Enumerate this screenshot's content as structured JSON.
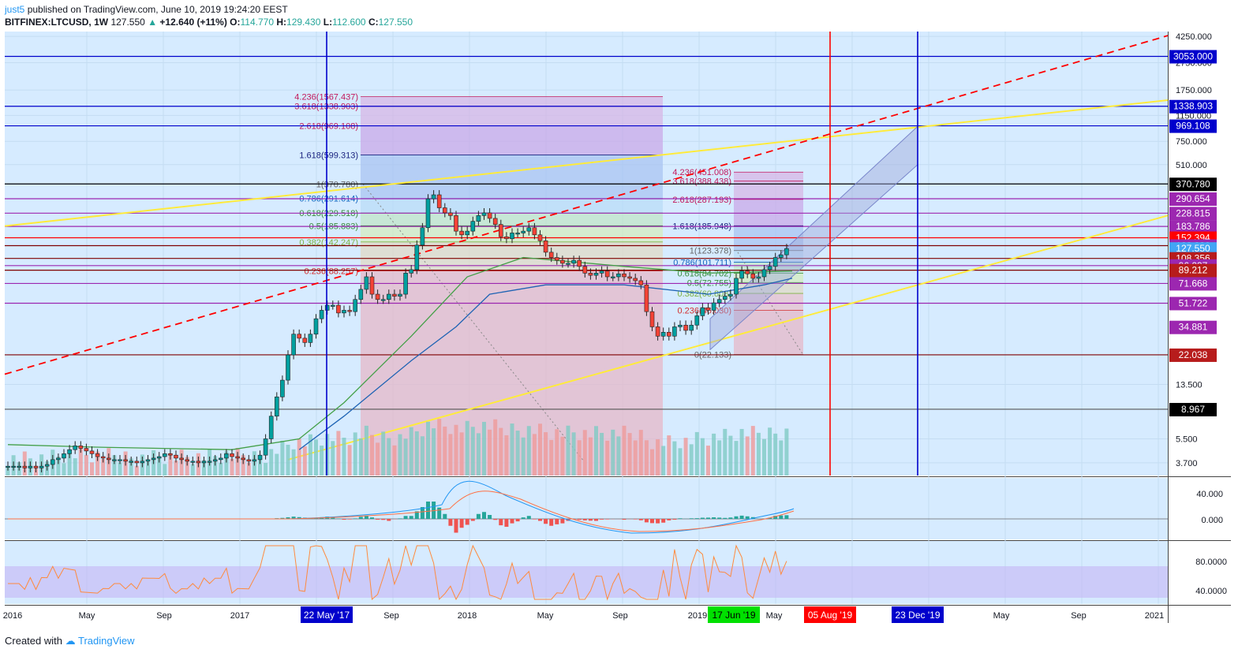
{
  "header": {
    "user": "just5",
    "published": "published on TradingView.com, June 10, 2019 19:24:20 EEST",
    "symbol": "BITFINEX:LTCUSD, 1W",
    "price": "127.550",
    "change": "+12.640 (+11%)",
    "o_label": "O:",
    "o_value": "114.770",
    "h_label": "H:",
    "h_value": "129.430",
    "l_label": "L:",
    "l_value": "112.600",
    "c_label": "C:",
    "c_value": "127.550"
  },
  "footer": {
    "created_with": "Created with",
    "brand": "TradingView"
  },
  "colors": {
    "background": "#d6ebff",
    "up": "#26a69a",
    "down": "#ef5350",
    "accent_blue": "#0000cc",
    "red_line": "#ff0000",
    "yellow_line": "#ffeb3b"
  },
  "chart_data": {
    "type": "line",
    "scale": "log",
    "ylim": [
      3.0,
      4600
    ],
    "price_ticks": [
      "4250.000",
      "2750.000",
      "1750.000",
      "1150.000",
      "750.000",
      "510.000",
      "13.500",
      "5.500",
      "3.700"
    ],
    "price_labels": [
      {
        "text": "3053.000",
        "value": 3053,
        "color": "#0000cc"
      },
      {
        "text": "1338.903",
        "value": 1338.903,
        "color": "#0000cc"
      },
      {
        "text": "969.108",
        "value": 969.108,
        "color": "#0000cc"
      },
      {
        "text": "370.780",
        "value": 370.78,
        "color": "#000000"
      },
      {
        "text": "290.654",
        "value": 290.654,
        "color": "#9c27b0"
      },
      {
        "text": "228.815",
        "value": 228.815,
        "color": "#9c27b0"
      },
      {
        "text": "183.786",
        "value": 183.786,
        "color": "#9c27b0"
      },
      {
        "text": "152.394",
        "value": 152.394,
        "color": "#ff0000"
      },
      {
        "text": "133.832",
        "value": 133.832,
        "color": "#9c27b0"
      },
      {
        "text": "127.550",
        "value": 127.55,
        "color": "#42a5f5"
      },
      {
        "text": "108.356",
        "value": 108.356,
        "color": "#b71c1c"
      },
      {
        "text": "96.237",
        "value": 96.237,
        "color": "#9c27b0"
      },
      {
        "text": "89.212",
        "value": 89.212,
        "color": "#b71c1c"
      },
      {
        "text": "71.668",
        "value": 71.668,
        "color": "#9c27b0"
      },
      {
        "text": "51.722",
        "value": 51.722,
        "color": "#9c27b0"
      },
      {
        "text": "34.881",
        "value": 34.881,
        "color": "#9c27b0"
      },
      {
        "text": "22.038",
        "value": 22.038,
        "color": "#b71c1c"
      },
      {
        "text": "8.967",
        "value": 8.967,
        "color": "#000000"
      }
    ],
    "horizontal_lines": [
      {
        "value": 3053,
        "color": "#0000cc"
      },
      {
        "value": 1338.903,
        "color": "#0000cc"
      },
      {
        "value": 969.108,
        "color": "#0000cc"
      },
      {
        "value": 370.78,
        "color": "#000000"
      },
      {
        "value": 290.654,
        "color": "#9c27b0"
      },
      {
        "value": 228.815,
        "color": "#9c27b0"
      },
      {
        "value": 183.786,
        "color": "#9c27b0"
      },
      {
        "value": 152.394,
        "color": "#ff0000"
      },
      {
        "value": 133.832,
        "color": "#7f0000"
      },
      {
        "value": 108.356,
        "color": "#7f0000"
      },
      {
        "value": 96.237,
        "color": "#9c27b0"
      },
      {
        "value": 89.212,
        "color": "#7f0000"
      },
      {
        "value": 71.668,
        "color": "#9c27b0"
      },
      {
        "value": 51.722,
        "color": "#9c27b0"
      },
      {
        "value": 22.038,
        "color": "#7f0000"
      },
      {
        "value": 8.967,
        "color": "#555555"
      }
    ],
    "fib_1": {
      "low": 22.133,
      "high": 370.78,
      "levels": [
        {
          "text": "4.236(1567.437)",
          "value": 1567.437,
          "color": "#c2185b"
        },
        {
          "text": "3.618(1338.903)",
          "value": 1338.903,
          "color": "#c2185b"
        },
        {
          "text": "2.618(969.108)",
          "value": 969.108,
          "color": "#c2185b"
        },
        {
          "text": "1.618(599.313)",
          "value": 599.313,
          "color": "#1a237e"
        },
        {
          "text": "1(370.780)",
          "value": 370.78,
          "color": "#666666"
        },
        {
          "text": "0.786(291.614)",
          "value": 291.614,
          "color": "#1565c0"
        },
        {
          "text": "0.618(229.518)",
          "value": 229.518,
          "color": "#388e3c"
        },
        {
          "text": "0.5(185.883)",
          "value": 185.883,
          "color": "#388e3c"
        },
        {
          "text": "0.382(142.247)",
          "value": 142.247,
          "color": "#7cb342"
        },
        {
          "text": "0.236(88.257)",
          "value": 88.257,
          "color": "#d32f2f"
        }
      ]
    },
    "fib_2": {
      "levels": [
        {
          "text": "4.236(451.008)",
          "value": 451.008,
          "color": "#c2185b"
        },
        {
          "text": "3.618(388.438)",
          "value": 388.438,
          "color": "#c2185b"
        },
        {
          "text": "2.618(287.193)",
          "value": 287.193,
          "color": "#c2185b"
        },
        {
          "text": "1.618(185.948)",
          "value": 185.948,
          "color": "#1a237e"
        },
        {
          "text": "1(123.378)",
          "value": 123.378,
          "color": "#666666"
        },
        {
          "text": "0.786(101.711)",
          "value": 101.711,
          "color": "#1565c0"
        },
        {
          "text": "0.618(84.702)",
          "value": 84.702,
          "color": "#388e3c"
        },
        {
          "text": "0.5(72.755)",
          "value": 72.755,
          "color": "#388e3c"
        },
        {
          "text": "0.382(60.808)",
          "value": 60.808,
          "color": "#7cb342"
        },
        {
          "text": "0.236(46.030)",
          "value": 46.03,
          "color": "#d32f2f"
        },
        {
          "text": "0(22.133)",
          "value": 22.133,
          "color": "#666666"
        }
      ]
    },
    "time_axis": [
      "2016",
      "May",
      "Sep",
      "2017",
      "Sep",
      "2018",
      "May",
      "Sep",
      "2019",
      "May",
      "May",
      "Sep",
      "2021"
    ],
    "time_markers": [
      {
        "text": "22 May '17",
        "color": "#0000cc",
        "bg": "#0000cc"
      },
      {
        "text": "17 Jun '19",
        "color": "#000000",
        "bg": "#00e000"
      },
      {
        "text": "05 Aug '19",
        "color": "#ff0000",
        "bg": "#ff0000"
      },
      {
        "text": "23 Dec '19",
        "color": "#0000cc",
        "bg": "#0000cc"
      }
    ],
    "close_series": [
      3.5,
      3.5,
      3.5,
      3.4,
      3.5,
      3.4,
      3.5,
      3.6,
      3.9,
      4.0,
      4.3,
      4.6,
      4.9,
      4.7,
      4.5,
      4.3,
      4.1,
      4.0,
      3.9,
      3.9,
      3.9,
      3.8,
      3.8,
      3.7,
      3.8,
      3.9,
      4.0,
      4.1,
      4.3,
      4.2,
      4.0,
      3.9,
      3.8,
      3.8,
      3.7,
      3.8,
      3.8,
      3.9,
      4.0,
      4.3,
      4.1,
      4.0,
      3.9,
      3.8,
      3.9,
      4.2,
      5.5,
      8.0,
      11.0,
      14.5,
      22.0,
      31.0,
      29.0,
      27.0,
      31.0,
      40.0,
      46.0,
      50.0,
      50.0,
      44.0,
      46.0,
      45.0,
      55.0,
      65.0,
      80.0,
      60.0,
      55.0,
      55.0,
      60.0,
      58.0,
      60.0,
      85.0,
      90.0,
      135.0,
      180.0,
      290.0,
      310.0,
      250.0,
      230.0,
      220.0,
      170.0,
      160.0,
      170.0,
      200.0,
      220.0,
      230.0,
      210.0,
      190.0,
      155.0,
      150.0,
      165.0,
      165.0,
      170.0,
      180.0,
      160.0,
      145.0,
      120.0,
      110.0,
      105.0,
      100.0,
      100.0,
      105.0,
      95.0,
      85.0,
      82.0,
      85.0,
      88.0,
      80.0,
      80.0,
      84.0,
      80.0,
      78.0,
      75.0,
      70.0,
      45.0,
      35.0,
      30.0,
      32.0,
      30.0,
      35.0,
      36.0,
      33.0,
      36.0,
      42.0,
      48.0,
      46.0,
      52.0,
      55.0,
      58.0,
      60.0,
      78.0,
      88.0,
      84.0,
      78.0,
      80.0,
      90.0,
      95.0,
      110.0,
      115.0,
      127.55
    ],
    "ma_long": [
      [
        0,
        5.0
      ],
      [
        15,
        4.8
      ],
      [
        40,
        4.6
      ],
      [
        52,
        5.5
      ],
      [
        60,
        10
      ],
      [
        72,
        30
      ],
      [
        82,
        80
      ],
      [
        92,
        110
      ],
      [
        110,
        95
      ],
      [
        125,
        85
      ],
      [
        140,
        88
      ]
    ],
    "ma_short": [
      [
        52,
        4.6
      ],
      [
        60,
        8
      ],
      [
        72,
        20
      ],
      [
        80,
        35
      ],
      [
        86,
        60
      ],
      [
        96,
        70
      ],
      [
        110,
        70
      ],
      [
        125,
        60
      ],
      [
        135,
        70
      ],
      [
        140,
        78
      ]
    ],
    "rsi_band": [
      40,
      75
    ],
    "macd_ticks": [
      "40.000",
      "0.000"
    ],
    "rsi_ticks": [
      "80.0000",
      "40.0000"
    ]
  }
}
